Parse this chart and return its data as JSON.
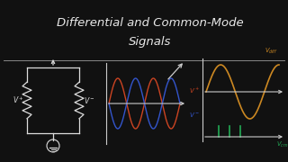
{
  "background_color": "#111111",
  "title_line1": "Differential and Common-Mode",
  "title_line2": "Signals",
  "title_color": "#e8e8e8",
  "title_fontsize": 9.5,
  "circuit_color": "#dddddd",
  "vplus_color": "#cc4422",
  "vminus_color": "#3355cc",
  "vdiff_color": "#cc8822",
  "vcm_color": "#22aa55",
  "axes_color": "#cccccc",
  "divider_color": "#888888"
}
